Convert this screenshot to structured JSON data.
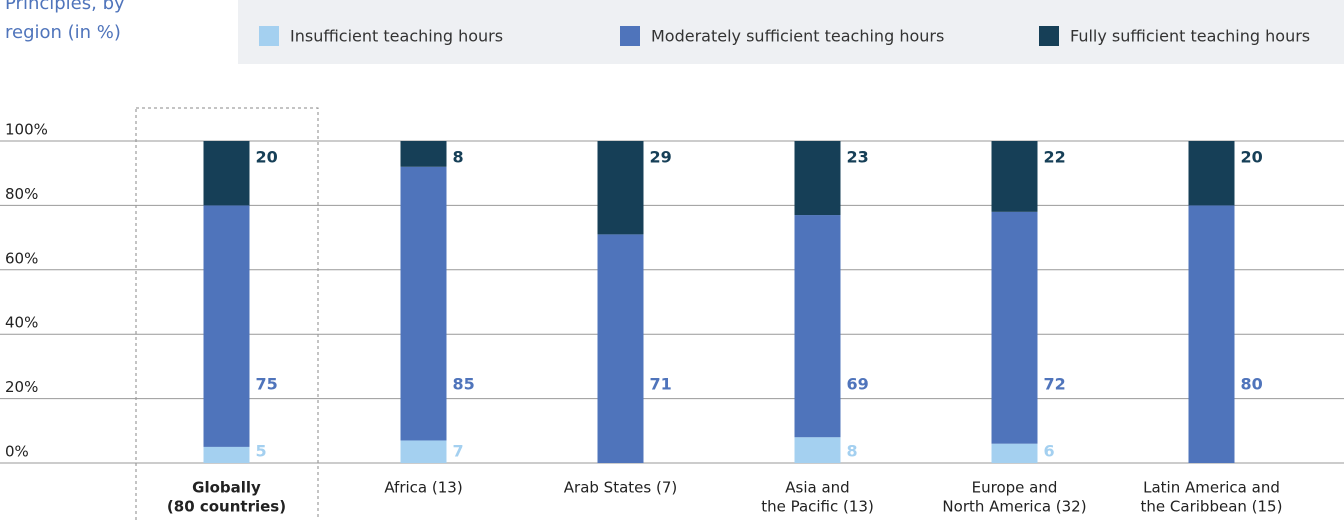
{
  "chart_data": {
    "type": "stacked_bar",
    "title": [
      "Principles, by",
      "region (in %)"
    ],
    "categories": [
      [
        "Globally",
        "(80 countries)"
      ],
      [
        "Africa (13)"
      ],
      [
        "Arab States (7)"
      ],
      [
        "Asia and",
        "the Pacific (13)"
      ],
      [
        "Europe and",
        "North America (32)"
      ],
      [
        "Latin America and",
        "the Caribbean (15)"
      ]
    ],
    "series": [
      {
        "name": "Insufficient teaching hours",
        "color": "#a4d0f0",
        "values": [
          5,
          7,
          0,
          8,
          6,
          0
        ]
      },
      {
        "name": "Moderately sufficient teaching hours",
        "color": "#4f74bb",
        "values": [
          75,
          85,
          71,
          69,
          72,
          80
        ]
      },
      {
        "name": "Fully sufficient teaching hours",
        "color": "#163f57",
        "values": [
          20,
          8,
          29,
          23,
          22,
          20
        ]
      }
    ],
    "ylim": [
      0,
      100
    ],
    "yticks": [
      {
        "value": 0,
        "label": "0%"
      },
      {
        "value": 20,
        "label": "20%"
      },
      {
        "value": 40,
        "label": "40%"
      },
      {
        "value": 60,
        "label": "60%"
      },
      {
        "value": 80,
        "label": "80%"
      },
      {
        "value": 100,
        "label": "100%"
      }
    ],
    "grid": true,
    "legend": "top"
  }
}
